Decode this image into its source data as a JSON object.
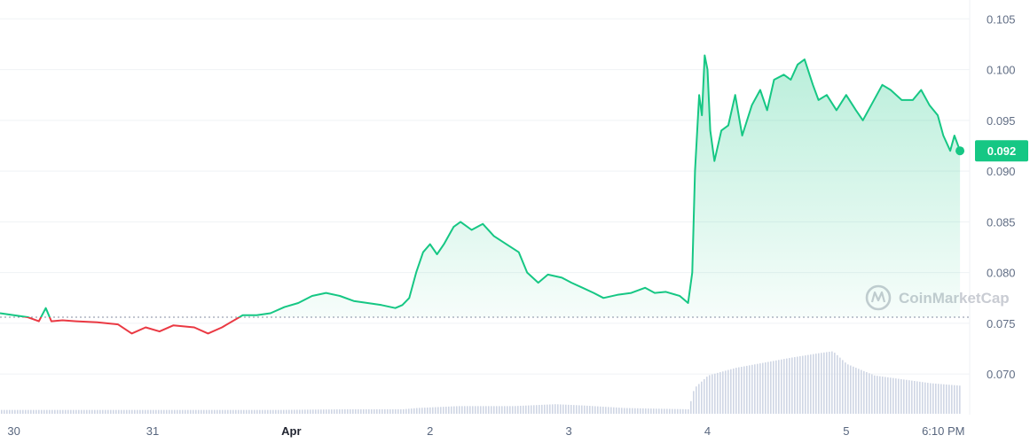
{
  "chart_data": {
    "type": "area",
    "y_ticks": [
      "0.105",
      "0.100",
      "0.095",
      "0.090",
      "0.085",
      "0.080",
      "0.075",
      "0.070"
    ],
    "y_tick_values": [
      0.105,
      0.1,
      0.095,
      0.09,
      0.085,
      0.08,
      0.075,
      0.07
    ],
    "ylim": [
      0.066,
      0.1059
    ],
    "x_ticks": [
      {
        "label": "30",
        "t": 0.1,
        "bold": false
      },
      {
        "label": "31",
        "t": 1.1,
        "bold": false
      },
      {
        "label": "Apr",
        "t": 2.1,
        "bold": true
      },
      {
        "label": "2",
        "t": 3.1,
        "bold": false
      },
      {
        "label": "3",
        "t": 4.1,
        "bold": false
      },
      {
        "label": "4",
        "t": 5.1,
        "bold": false
      },
      {
        "label": "5",
        "t": 6.1,
        "bold": false
      },
      {
        "label": "6:10 PM",
        "t": 6.8,
        "bold": false
      }
    ],
    "xlim": [
      0.0,
      6.99
    ],
    "reference_price": 0.0756,
    "current_price": 0.092,
    "current_price_label": "0.092",
    "colors": {
      "up": "#16c784",
      "down": "#ea3943",
      "volume": "#cfd6e4",
      "grid": "#eff2f5",
      "badge": "#16c784",
      "reference": "#858ca2"
    },
    "price_series": {
      "name": "Price",
      "points": [
        [
          0.0,
          0.076
        ],
        [
          0.1,
          0.0758
        ],
        [
          0.2,
          0.0756
        ],
        [
          0.28,
          0.0752
        ],
        [
          0.33,
          0.0765
        ],
        [
          0.37,
          0.0752
        ],
        [
          0.45,
          0.0753
        ],
        [
          0.55,
          0.0752
        ],
        [
          0.7,
          0.0751
        ],
        [
          0.85,
          0.0749
        ],
        [
          0.95,
          0.074
        ],
        [
          1.05,
          0.0746
        ],
        [
          1.15,
          0.0742
        ],
        [
          1.25,
          0.0748
        ],
        [
          1.4,
          0.0746
        ],
        [
          1.5,
          0.074
        ],
        [
          1.6,
          0.0746
        ],
        [
          1.75,
          0.0758
        ],
        [
          1.85,
          0.0758
        ],
        [
          1.95,
          0.076
        ],
        [
          2.05,
          0.0766
        ],
        [
          2.15,
          0.077
        ],
        [
          2.25,
          0.0777
        ],
        [
          2.35,
          0.078
        ],
        [
          2.45,
          0.0777
        ],
        [
          2.55,
          0.0772
        ],
        [
          2.65,
          0.077
        ],
        [
          2.75,
          0.0768
        ],
        [
          2.85,
          0.0765
        ],
        [
          2.9,
          0.0768
        ],
        [
          2.95,
          0.0775
        ],
        [
          3.0,
          0.08
        ],
        [
          3.05,
          0.082
        ],
        [
          3.1,
          0.0828
        ],
        [
          3.15,
          0.0818
        ],
        [
          3.2,
          0.0828
        ],
        [
          3.27,
          0.0845
        ],
        [
          3.32,
          0.085
        ],
        [
          3.4,
          0.0842
        ],
        [
          3.48,
          0.0848
        ],
        [
          3.56,
          0.0836
        ],
        [
          3.65,
          0.0828
        ],
        [
          3.74,
          0.082
        ],
        [
          3.8,
          0.08
        ],
        [
          3.88,
          0.079
        ],
        [
          3.95,
          0.0798
        ],
        [
          4.05,
          0.0795
        ],
        [
          4.12,
          0.079
        ],
        [
          4.2,
          0.0785
        ],
        [
          4.28,
          0.078
        ],
        [
          4.35,
          0.0775
        ],
        [
          4.45,
          0.0778
        ],
        [
          4.55,
          0.078
        ],
        [
          4.65,
          0.0785
        ],
        [
          4.72,
          0.078
        ],
        [
          4.8,
          0.0781
        ],
        [
          4.9,
          0.0777
        ],
        [
          4.96,
          0.077
        ],
        [
          4.99,
          0.08
        ],
        [
          5.01,
          0.09
        ],
        [
          5.04,
          0.0975
        ],
        [
          5.06,
          0.0955
        ],
        [
          5.08,
          0.1014
        ],
        [
          5.1,
          0.1
        ],
        [
          5.12,
          0.094
        ],
        [
          5.15,
          0.091
        ],
        [
          5.2,
          0.094
        ],
        [
          5.25,
          0.0945
        ],
        [
          5.3,
          0.0975
        ],
        [
          5.35,
          0.0935
        ],
        [
          5.42,
          0.0965
        ],
        [
          5.48,
          0.098
        ],
        [
          5.53,
          0.096
        ],
        [
          5.58,
          0.099
        ],
        [
          5.65,
          0.0995
        ],
        [
          5.7,
          0.099
        ],
        [
          5.75,
          0.1005
        ],
        [
          5.8,
          0.101
        ],
        [
          5.86,
          0.0985
        ],
        [
          5.9,
          0.097
        ],
        [
          5.96,
          0.0975
        ],
        [
          6.03,
          0.096
        ],
        [
          6.1,
          0.0975
        ],
        [
          6.17,
          0.096
        ],
        [
          6.22,
          0.095
        ],
        [
          6.28,
          0.0965
        ],
        [
          6.36,
          0.0985
        ],
        [
          6.42,
          0.098
        ],
        [
          6.5,
          0.097
        ],
        [
          6.58,
          0.097
        ],
        [
          6.64,
          0.098
        ],
        [
          6.7,
          0.0965
        ],
        [
          6.76,
          0.0955
        ],
        [
          6.8,
          0.0935
        ],
        [
          6.85,
          0.092
        ],
        [
          6.88,
          0.0935
        ],
        [
          6.92,
          0.092
        ]
      ]
    },
    "volume_series": {
      "name": "Volume",
      "points": [
        [
          0.0,
          0.06
        ],
        [
          1.0,
          0.06
        ],
        [
          2.0,
          0.06
        ],
        [
          2.5,
          0.07
        ],
        [
          2.9,
          0.07
        ],
        [
          3.0,
          0.09
        ],
        [
          3.3,
          0.12
        ],
        [
          3.7,
          0.12
        ],
        [
          4.0,
          0.15
        ],
        [
          4.2,
          0.13
        ],
        [
          4.5,
          0.09
        ],
        [
          4.96,
          0.07
        ],
        [
          5.0,
          0.4
        ],
        [
          5.1,
          0.6
        ],
        [
          5.3,
          0.72
        ],
        [
          5.5,
          0.8
        ],
        [
          5.7,
          0.88
        ],
        [
          5.9,
          0.95
        ],
        [
          6.0,
          0.98
        ],
        [
          6.1,
          0.78
        ],
        [
          6.3,
          0.6
        ],
        [
          6.5,
          0.54
        ],
        [
          6.7,
          0.48
        ],
        [
          6.92,
          0.44
        ]
      ]
    },
    "watermark": "CoinMarketCap"
  }
}
